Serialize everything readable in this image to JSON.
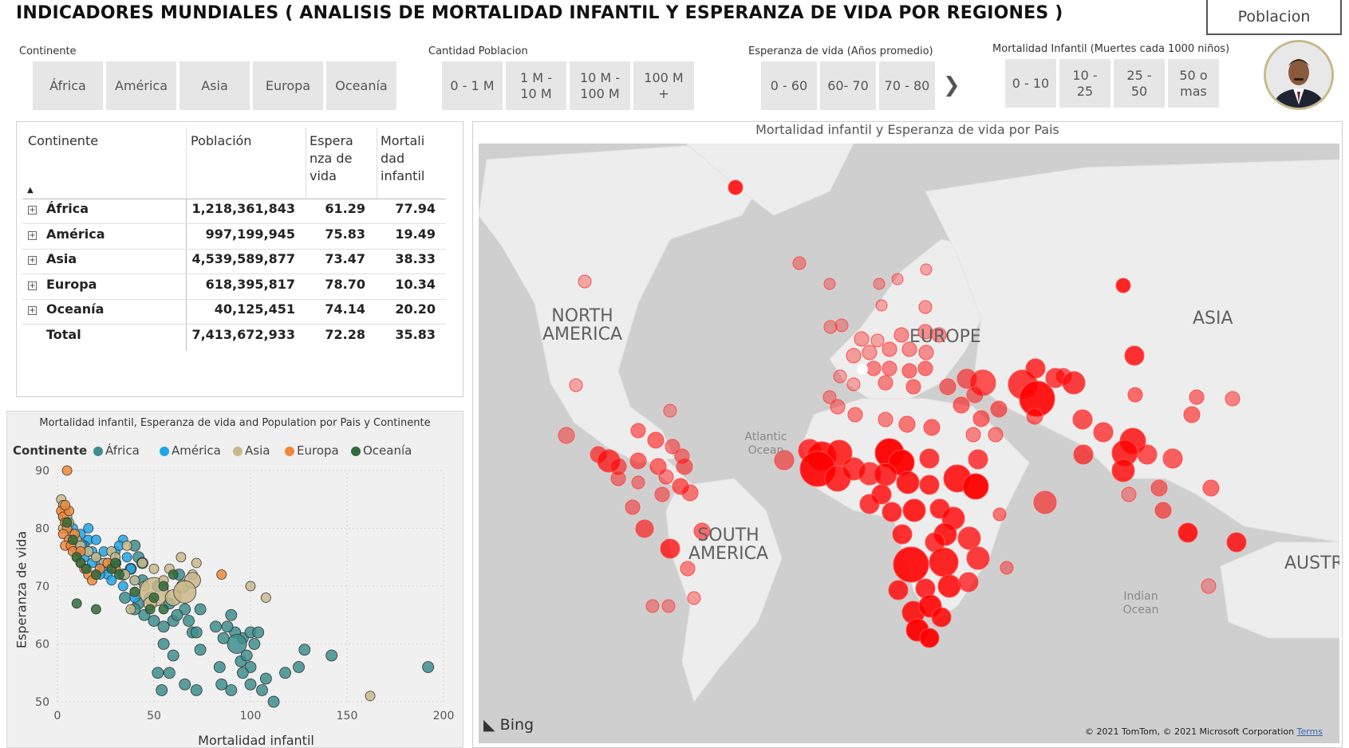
{
  "title": "INDICADORES MUNDIALES ( ANALISIS DE MORTALIDAD INFANTIL Y ESPERANZA DE VIDA POR REGIONES )",
  "poblacion_button": "Poblacion",
  "slicers": {
    "continente": {
      "title": "Continente",
      "options": [
        "África",
        "América",
        "Asia",
        "Europa",
        "Oceanía"
      ]
    },
    "cantidad": {
      "title": "Cantidad Poblacion",
      "options": [
        "0 - 1 M",
        "1 M - 10 M",
        "10 M - 100 M",
        "100 M +"
      ]
    },
    "esperanza": {
      "title": "Esperanza de vida (Años promedio)",
      "options": [
        "0 - 60",
        "60- 70",
        "70 - 80"
      ],
      "next_icon": "chevron-right-icon"
    },
    "mortalidad": {
      "title": "Mortalidad Infantil (Muertes cada 1000 niños)",
      "options": [
        "0 - 10",
        "10 - 25",
        "25 - 50",
        "50 o mas"
      ]
    }
  },
  "table": {
    "headers": [
      "Continente",
      "Población",
      "Esperanza de vida",
      "Mortalidad infantil"
    ],
    "sort_icon": "sort-ascending-icon",
    "rows": [
      {
        "name": "África",
        "poblacion": "1,218,361,843",
        "esperanza": "61.29",
        "mortalidad": "77.94"
      },
      {
        "name": "América",
        "poblacion": "997,199,945",
        "esperanza": "75.83",
        "mortalidad": "19.49"
      },
      {
        "name": "Asia",
        "poblacion": "4,539,589,877",
        "esperanza": "73.47",
        "mortalidad": "38.33"
      },
      {
        "name": "Europa",
        "poblacion": "618,395,817",
        "esperanza": "78.70",
        "mortalidad": "10.34"
      },
      {
        "name": "Oceanía",
        "poblacion": "40,125,451",
        "esperanza": "74.14",
        "mortalidad": "20.20"
      }
    ],
    "total": {
      "name": "Total",
      "poblacion": "7,413,672,933",
      "esperanza": "72.28",
      "mortalidad": "35.83"
    }
  },
  "scatter": {
    "title": "Mortalidad infantil, Esperanza de vida and Population por Pais y Continente",
    "legend_title": "Continente",
    "legend": [
      {
        "name": "África",
        "color": "#3e8e8e"
      },
      {
        "name": "América",
        "color": "#1ea7e6"
      },
      {
        "name": "Asia",
        "color": "#c9b88a"
      },
      {
        "name": "Europa",
        "color": "#f0883a"
      },
      {
        "name": "Oceanía",
        "color": "#2f6b3a"
      }
    ],
    "xlabel": "Mortalidad infantil",
    "ylabel": "Esperanza de vida",
    "xticks": [
      "0",
      "50",
      "100",
      "150",
      "200"
    ],
    "yticks": [
      "50",
      "60",
      "70",
      "80",
      "90"
    ]
  },
  "chart_data": {
    "type": "scatter",
    "title": "Mortalidad infantil, Esperanza de vida and Population por Pais y Continente",
    "xlabel": "Mortalidad infantil",
    "ylabel": "Esperanza de vida",
    "xlim": [
      0,
      200
    ],
    "ylim": [
      50,
      90
    ],
    "series": [
      {
        "name": "África",
        "points": [
          [
            192,
            56
          ],
          [
            142,
            58
          ],
          [
            125,
            56
          ],
          [
            128,
            59
          ],
          [
            118,
            55
          ],
          [
            100,
            53
          ],
          [
            100,
            56
          ],
          [
            85,
            53
          ],
          [
            90,
            52
          ],
          [
            95,
            57
          ],
          [
            98,
            58
          ],
          [
            102,
            60
          ],
          [
            96,
            61
          ],
          [
            92,
            62
          ],
          [
            88,
            63
          ],
          [
            90,
            65
          ],
          [
            93,
            60
          ],
          [
            100,
            62
          ],
          [
            104,
            62
          ],
          [
            82,
            63
          ],
          [
            86,
            61
          ],
          [
            70,
            62
          ],
          [
            68,
            64
          ],
          [
            60,
            64
          ],
          [
            66,
            66
          ],
          [
            74,
            66
          ],
          [
            72,
            62
          ],
          [
            55,
            63
          ],
          [
            58,
            67
          ],
          [
            62,
            65
          ],
          [
            50,
            64
          ],
          [
            45,
            65
          ],
          [
            42,
            67
          ],
          [
            35,
            68
          ],
          [
            40,
            66
          ],
          [
            55,
            60
          ],
          [
            60,
            58
          ],
          [
            58,
            55
          ],
          [
            66,
            53
          ],
          [
            54,
            52
          ],
          [
            52,
            55
          ],
          [
            72,
            52
          ],
          [
            84,
            56
          ],
          [
            96,
            55
          ],
          [
            108,
            54
          ],
          [
            112,
            50
          ],
          [
            106,
            52
          ],
          [
            74,
            59
          ],
          [
            63,
            72
          ],
          [
            52,
            70
          ],
          [
            48,
            68
          ],
          [
            44,
            71
          ],
          [
            38,
            73
          ],
          [
            42,
            75
          ],
          [
            30,
            74
          ],
          [
            34,
            72
          ],
          [
            40,
            77
          ],
          [
            44,
            74
          ]
        ],
        "sizes": [
          7,
          7,
          7,
          7,
          7,
          7,
          7,
          7,
          7,
          7,
          7,
          7,
          7,
          7,
          7,
          7,
          12,
          7,
          7,
          7,
          7,
          7,
          7,
          7,
          7,
          7,
          7,
          7,
          7,
          7,
          7,
          7,
          7,
          7,
          7,
          7,
          7,
          7,
          7,
          7,
          7,
          7,
          7,
          7,
          7,
          7,
          7,
          7,
          7,
          7,
          7,
          7,
          7,
          7,
          7,
          7,
          7,
          7
        ]
      },
      {
        "name": "América",
        "points": [
          [
            3,
            82
          ],
          [
            8,
            80
          ],
          [
            12,
            79
          ],
          [
            16,
            78
          ],
          [
            14,
            77
          ],
          [
            18,
            76
          ],
          [
            20,
            75
          ],
          [
            22,
            74
          ],
          [
            24,
            73
          ],
          [
            26,
            72
          ],
          [
            28,
            71
          ],
          [
            22,
            72
          ],
          [
            18,
            74
          ],
          [
            14,
            75
          ],
          [
            10,
            76
          ],
          [
            12,
            77
          ],
          [
            30,
            76
          ],
          [
            34,
            78
          ],
          [
            32,
            77
          ],
          [
            36,
            75
          ],
          [
            38,
            73
          ],
          [
            40,
            71
          ],
          [
            40,
            68
          ],
          [
            34,
            70
          ],
          [
            30,
            73
          ],
          [
            26,
            74
          ],
          [
            24,
            76
          ],
          [
            20,
            78
          ],
          [
            16,
            80
          ],
          [
            25,
            74
          ]
        ],
        "sizes": [
          6,
          6,
          6,
          6,
          6,
          6,
          6,
          6,
          6,
          6,
          6,
          6,
          6,
          6,
          6,
          8,
          6,
          6,
          6,
          6,
          6,
          6,
          6,
          6,
          6,
          6,
          6,
          6,
          6,
          6
        ]
      },
      {
        "name": "Asia",
        "points": [
          [
            2,
            85
          ],
          [
            3,
            84
          ],
          [
            4,
            83
          ],
          [
            5,
            82
          ],
          [
            6,
            81
          ],
          [
            3,
            80
          ],
          [
            8,
            79
          ],
          [
            10,
            78
          ],
          [
            12,
            77
          ],
          [
            16,
            76
          ],
          [
            20,
            75
          ],
          [
            24,
            74
          ],
          [
            30,
            73
          ],
          [
            35,
            72
          ],
          [
            40,
            71
          ],
          [
            45,
            70
          ],
          [
            50,
            69
          ],
          [
            60,
            68
          ],
          [
            65,
            70
          ],
          [
            70,
            72
          ],
          [
            72,
            74
          ],
          [
            64,
            75
          ],
          [
            58,
            73
          ],
          [
            55,
            71
          ],
          [
            50,
            73
          ],
          [
            44,
            74
          ],
          [
            36,
            77
          ],
          [
            28,
            76
          ],
          [
            40,
            69
          ],
          [
            48,
            67
          ],
          [
            38,
            66
          ],
          [
            100,
            70
          ],
          [
            108,
            68
          ],
          [
            70,
            71
          ],
          [
            66,
            69
          ],
          [
            162,
            51
          ],
          [
            30,
            75
          ]
        ],
        "sizes": [
          6,
          6,
          6,
          6,
          6,
          6,
          6,
          6,
          6,
          6,
          6,
          6,
          6,
          6,
          6,
          6,
          18,
          10,
          8,
          6,
          6,
          6,
          6,
          6,
          6,
          6,
          6,
          6,
          6,
          8,
          6,
          6,
          6,
          10,
          14,
          6,
          6
        ]
      },
      {
        "name": "Europa",
        "points": [
          [
            5,
            90
          ],
          [
            2,
            83
          ],
          [
            3,
            82
          ],
          [
            4,
            81
          ],
          [
            5,
            80
          ],
          [
            3,
            79
          ],
          [
            6,
            78
          ],
          [
            4,
            77
          ],
          [
            7,
            77
          ],
          [
            8,
            76
          ],
          [
            10,
            75
          ],
          [
            12,
            74
          ],
          [
            14,
            73
          ],
          [
            16,
            72
          ],
          [
            18,
            71
          ],
          [
            20,
            72
          ],
          [
            22,
            73
          ],
          [
            26,
            74
          ],
          [
            30,
            73
          ],
          [
            85,
            72
          ],
          [
            6,
            83
          ],
          [
            9,
            79
          ],
          [
            12,
            76
          ],
          [
            4,
            84
          ]
        ],
        "sizes": [
          6,
          6,
          6,
          6,
          6,
          6,
          6,
          6,
          6,
          6,
          6,
          6,
          6,
          6,
          6,
          6,
          6,
          6,
          6,
          6,
          6,
          6,
          6,
          6
        ]
      },
      {
        "name": "Oceanía",
        "points": [
          [
            5,
            81
          ],
          [
            8,
            78
          ],
          [
            10,
            75
          ],
          [
            12,
            74
          ],
          [
            15,
            73
          ],
          [
            20,
            72
          ],
          [
            28,
            73
          ],
          [
            30,
            74
          ],
          [
            32,
            72
          ],
          [
            40,
            69
          ],
          [
            50,
            68
          ],
          [
            55,
            70
          ],
          [
            60,
            72
          ],
          [
            10,
            67
          ],
          [
            20,
            66
          ],
          [
            48,
            66
          ],
          [
            55,
            66
          ]
        ],
        "sizes": [
          6,
          6,
          6,
          6,
          6,
          6,
          6,
          6,
          6,
          6,
          6,
          6,
          6,
          6,
          6,
          6,
          6
        ]
      }
    ]
  },
  "map": {
    "title": "Mortalidad infantil y Esperanza de vida por Pais",
    "labels": [
      "NORTH AMERICA",
      "EUROPE",
      "ASIA",
      "SOUTH AMERICA",
      "AUSTRA",
      "Atlantic Ocean",
      "Indian Ocean"
    ],
    "bing": "Bing",
    "copyright": "© 2021 TomTom, © 2021 Microsoft Corporation",
    "terms": "Terms"
  }
}
